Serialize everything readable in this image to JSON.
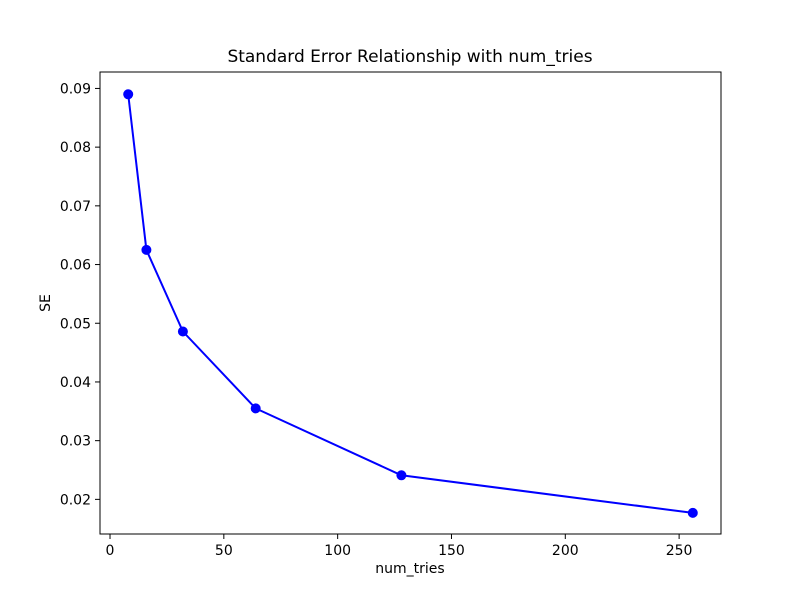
{
  "chart_data": {
    "type": "line",
    "title": "Standard Error Relationship with num_tries",
    "xlabel": "num_tries",
    "ylabel": "SE",
    "x": [
      8,
      16,
      32,
      64,
      128,
      256
    ],
    "y": [
      0.089,
      0.0625,
      0.0486,
      0.0355,
      0.0241,
      0.0177
    ],
    "series_name": "SE",
    "xlim": [
      -4.4,
      268.4
    ],
    "ylim": [
      0.0141,
      0.0928
    ],
    "xticks": [
      0,
      50,
      100,
      150,
      200,
      250
    ],
    "yticks": [
      0.02,
      0.03,
      0.04,
      0.05,
      0.06,
      0.07,
      0.08,
      0.09
    ],
    "line_color": "#0000ff",
    "marker": "circle",
    "marker_size": 5,
    "grid": false,
    "legend": null,
    "background": "#ffffff",
    "spine_color": "#000000"
  }
}
